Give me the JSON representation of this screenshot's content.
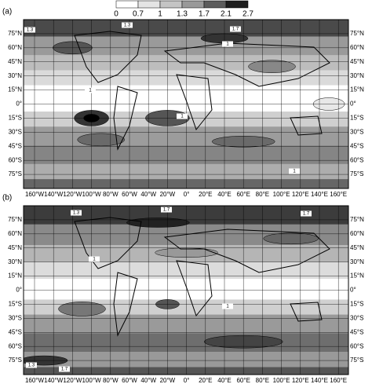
{
  "colorbar": {
    "labels": [
      "0",
      "0.7",
      "1",
      "1.3",
      "1.7",
      "2.1",
      "2.7"
    ]
  },
  "latitude_labels": [
    "75°N",
    "60°N",
    "45°N",
    "30°N",
    "15°N",
    "0°",
    "15°S",
    "30°S",
    "45°S",
    "60°S",
    "75°S"
  ],
  "longitude_labels": [
    "160°W",
    "140°W",
    "120°W",
    "100°W",
    "80°W",
    "60°W",
    "40°W",
    "20°W",
    "0°",
    "20°E",
    "40°E",
    "60°E",
    "80°E",
    "100°E",
    "120°E",
    "140°E",
    "160°E"
  ],
  "panels": [
    {
      "label": "(a)",
      "contour_labels": [
        "1.3",
        "1.3",
        "1.7",
        "1",
        "1",
        "1",
        "1"
      ]
    },
    {
      "label": "(b)",
      "contour_labels": [
        "1.3",
        "1.7",
        "1.7",
        "1.3",
        "1.7",
        "1",
        "1"
      ]
    }
  ]
}
